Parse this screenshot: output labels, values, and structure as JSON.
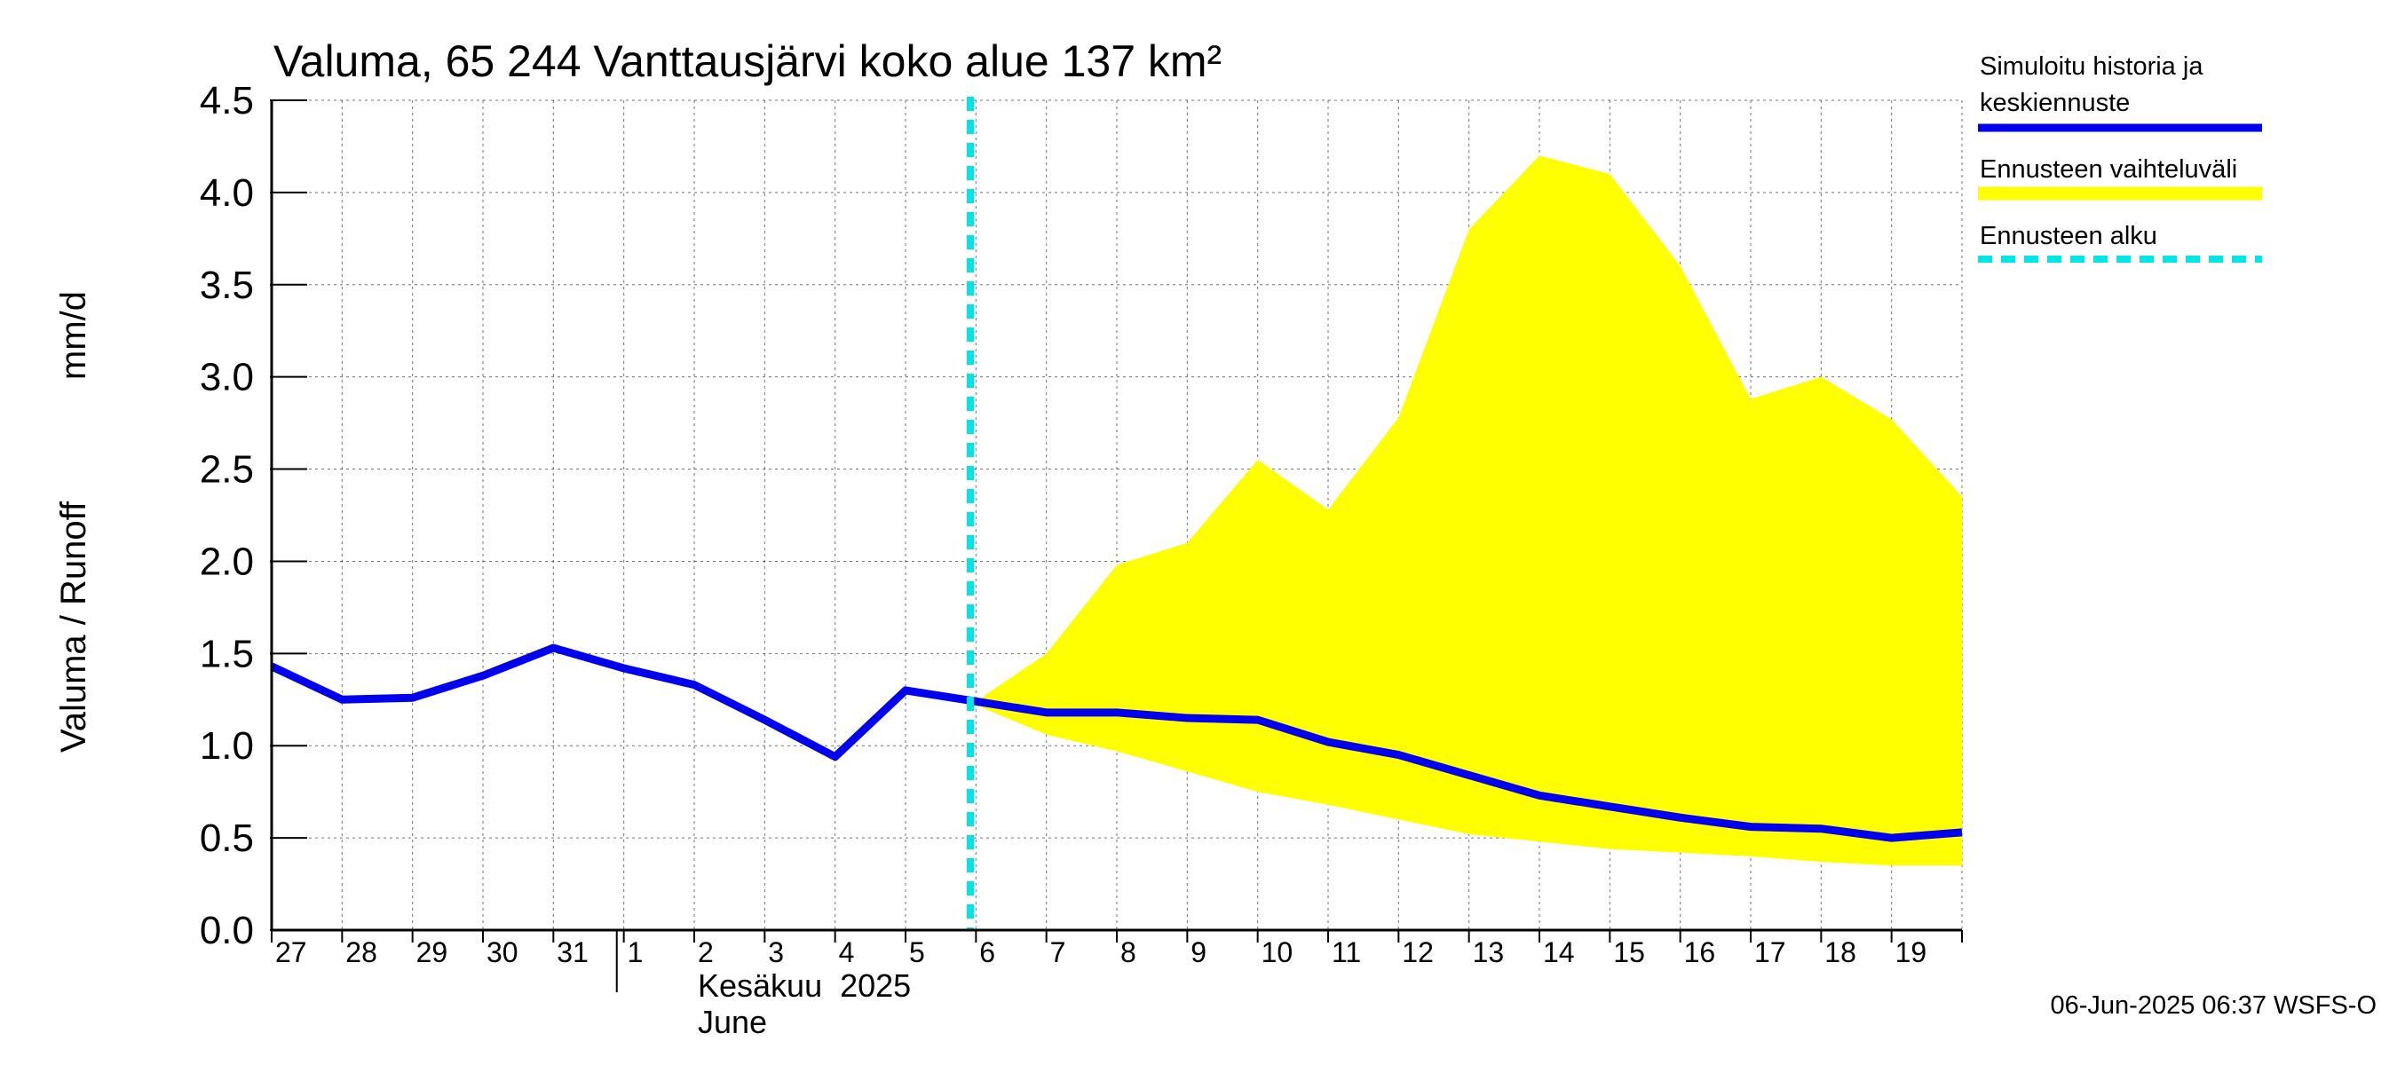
{
  "chart_data": {
    "type": "line",
    "title": "Valuma, 65 244 Vanttausjärvi koko alue 137 km²",
    "ylabel_left": "Valuma / Runoff",
    "ylabel_right": "mm/d",
    "ylim": [
      0,
      4.5
    ],
    "yticks": [
      "0.0",
      "0.5",
      "1.0",
      "1.5",
      "2.0",
      "2.5",
      "3.0",
      "3.5",
      "4.0",
      "4.5"
    ],
    "x_tick_labels": [
      "27",
      "28",
      "29",
      "30",
      "31",
      "1",
      "2",
      "3",
      "4",
      "5",
      "6",
      "7",
      "8",
      "9",
      "10",
      "11",
      "12",
      "13",
      "14",
      "15",
      "16",
      "17",
      "18",
      "19"
    ],
    "month_label_fi": "Kesäkuu  2025",
    "month_label_en": "June",
    "grid": true,
    "series": [
      {
        "name": "Simuloitu historia ja keskiennuste",
        "color": "#0000ee",
        "x": [
          "2025-05-27",
          "2025-05-28",
          "2025-05-29",
          "2025-05-30",
          "2025-05-31",
          "2025-06-01",
          "2025-06-02",
          "2025-06-03",
          "2025-06-04",
          "2025-06-05",
          "2025-06-06",
          "2025-06-07",
          "2025-06-08",
          "2025-06-09",
          "2025-06-10",
          "2025-06-11",
          "2025-06-12",
          "2025-06-13",
          "2025-06-14",
          "2025-06-15",
          "2025-06-16",
          "2025-06-17",
          "2025-06-18",
          "2025-06-19",
          "2025-06-20"
        ],
        "values": [
          1.43,
          1.25,
          1.26,
          1.38,
          1.53,
          1.42,
          1.33,
          1.14,
          0.94,
          1.3,
          1.24,
          1.18,
          1.18,
          1.15,
          1.14,
          1.02,
          0.95,
          0.84,
          0.73,
          0.67,
          0.61,
          0.56,
          0.55,
          0.5,
          0.53
        ]
      },
      {
        "name": "Ennusteen vaihteluväli",
        "color": "#ffff00",
        "x": [
          "2025-06-06",
          "2025-06-07",
          "2025-06-08",
          "2025-06-09",
          "2025-06-10",
          "2025-06-11",
          "2025-06-12",
          "2025-06-13",
          "2025-06-14",
          "2025-06-15",
          "2025-06-16",
          "2025-06-17",
          "2025-06-18",
          "2025-06-19",
          "2025-06-20"
        ],
        "upper": [
          1.24,
          1.5,
          1.98,
          2.1,
          2.55,
          2.28,
          2.78,
          3.8,
          4.2,
          4.1,
          3.6,
          2.88,
          3.0,
          2.77,
          2.35
        ],
        "lower": [
          1.22,
          1.06,
          0.97,
          0.86,
          0.75,
          0.68,
          0.6,
          0.52,
          0.48,
          0.44,
          0.42,
          0.4,
          0.37,
          0.35,
          0.35
        ]
      }
    ],
    "forecast_start": "2025-06-06",
    "forecast_start_color": "#00e5e5"
  },
  "legend": {
    "history_line1": "Simuloitu historia ja",
    "history_line2": "keskiennuste",
    "range": "Ennusteen vaihteluväli",
    "start": "Ennusteen alku"
  },
  "footer": "06-Jun-2025 06:37 WSFS-O"
}
